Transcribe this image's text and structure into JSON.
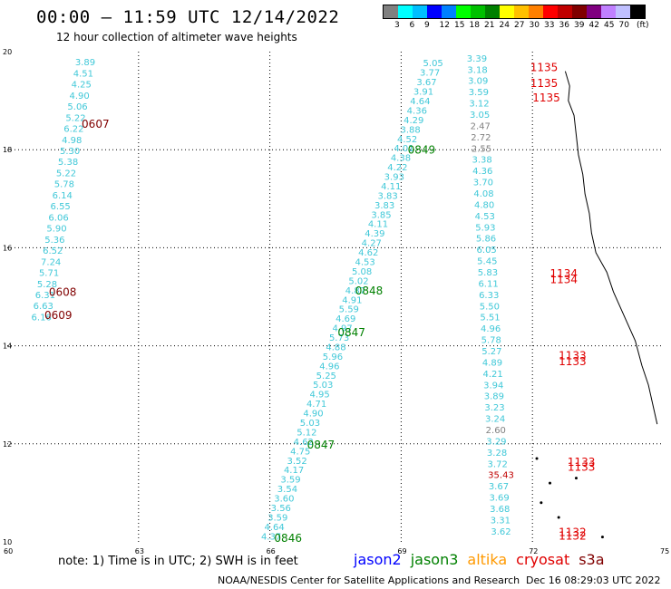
{
  "header": {
    "title": "00:00 – 11:59 UTC 12/14/2022",
    "subtitle": "12 hour collection of altimeter wave heights"
  },
  "legend": {
    "unit": "(ft)",
    "colors": [
      "#808080",
      "#00ffff",
      "#00bfff",
      "#0000ff",
      "#0080ff",
      "#00ff00",
      "#00c000",
      "#008000",
      "#ffff00",
      "#ffc000",
      "#ff8000",
      "#ff0000",
      "#c00000",
      "#800000",
      "#800080",
      "#c080ff",
      "#c0c0ff",
      "#000000"
    ],
    "ticks": [
      "3",
      "6",
      "9",
      "12",
      "15",
      "18",
      "21",
      "24",
      "27",
      "30",
      "33",
      "36",
      "39",
      "42",
      "45",
      "70"
    ]
  },
  "map": {
    "lon_range": [
      60,
      75
    ],
    "lat_range": [
      10,
      20
    ],
    "lon_ticks": [
      "60",
      "63",
      "66",
      "69",
      "72",
      "75"
    ],
    "lat_ticks": [
      "10",
      "12",
      "14",
      "16",
      "18",
      "20"
    ],
    "grid_lons": [
      63,
      66,
      69,
      72
    ],
    "grid_lats": [
      12,
      14,
      16,
      18
    ],
    "colors": {
      "swh": "#40c8d8",
      "swh_gray": "#808080",
      "swh_red": "#c00000",
      "jason3": "#008000",
      "cryosat": "#e00000",
      "sentinel3a": "#800000",
      "coast": "#000000"
    },
    "tracks": [
      {
        "name": "track-a",
        "lon_start": 61.55,
        "lat_start": 19.72,
        "lon_end": 60.55,
        "lat_end": 14.52,
        "values": [
          "3.89",
          "4.51",
          "4.25",
          "4.90",
          "5.06",
          "5.22",
          "6.22",
          "4.98",
          "5.30",
          "5.38",
          "5.22",
          "5.78",
          "6.14",
          "6.55",
          "6.06",
          "5.90",
          "5.36",
          "6.52",
          "7.24",
          "5.71",
          "5.28",
          "6.31",
          "6.63",
          "6.16"
        ]
      },
      {
        "name": "track-b",
        "lon_start": 69.5,
        "lat_start": 19.7,
        "lon_end": 65.8,
        "lat_end": 10.05,
        "values": [
          "5.05",
          "3.77",
          "3.67",
          "3.91",
          "4.64",
          "4.36",
          "4.29",
          "3.88",
          "4.52",
          "4.01",
          "4.38",
          "4.22",
          "3.93",
          "4.11",
          "3.83",
          "3.83",
          "3.85",
          "4.11",
          "4.39",
          "4.27",
          "4.62",
          "4.53",
          "5.08",
          "5.02",
          "4.87",
          "4.91",
          "5.59",
          "4.69",
          "4.97",
          "5.73",
          "4.88",
          "5.96",
          "4.96",
          "5.25",
          "5.03",
          "4.95",
          "4.71",
          "4.90",
          "5.03",
          "5.12",
          "4.62",
          "4.75",
          "3.52",
          "4.17",
          "3.59",
          "3.54",
          "3.60",
          "3.56",
          "3.59",
          "4.64",
          "4.37"
        ]
      },
      {
        "name": "track-c",
        "lon_start": 70.5,
        "lat_start": 19.8,
        "lon_end": 71.05,
        "lat_end": 10.15,
        "values": [
          "3.39",
          "3.18",
          "3.09",
          "3.59",
          "3.12",
          "3.05",
          "2.47",
          "2.72",
          "2.55",
          "3.38",
          "4.36",
          "3.70",
          "4.08",
          "4.80",
          "4.53",
          "5.93",
          "5.86",
          "6.05",
          "5.45",
          "5.83",
          "6.11",
          "6.33",
          "5.50",
          "5.51",
          "4.96",
          "5.78",
          "5.27",
          "4.89",
          "4.21",
          "3.94",
          "3.89",
          "3.23",
          "3.24",
          "2.60",
          "3.29",
          "3.28",
          "3.72",
          "35.43",
          "3.67",
          "3.69",
          "3.68",
          "3.31",
          "3.62"
        ]
      }
    ],
    "pass_labels": [
      {
        "text": "0607",
        "lon": 61.7,
        "lat": 18.45,
        "sat": "sentinel3a"
      },
      {
        "text": "0608",
        "lon": 60.95,
        "lat": 15.02,
        "sat": "sentinel3a"
      },
      {
        "text": "0609",
        "lon": 60.85,
        "lat": 14.55,
        "sat": "sentinel3a"
      },
      {
        "text": "0849",
        "lon": 69.15,
        "lat": 17.92,
        "sat": "jason3"
      },
      {
        "text": "0848",
        "lon": 67.95,
        "lat": 15.05,
        "sat": "jason3"
      },
      {
        "text": "0847",
        "lon": 67.55,
        "lat": 14.2,
        "sat": "jason3"
      },
      {
        "text": "0847",
        "lon": 66.85,
        "lat": 11.9,
        "sat": "jason3"
      },
      {
        "text": "0846",
        "lon": 66.1,
        "lat": 10.0,
        "sat": "jason3"
      },
      {
        "text": "1135",
        "lon": 71.95,
        "lat": 19.6,
        "sat": "cryosat"
      },
      {
        "text": "1135",
        "lon": 71.95,
        "lat": 19.28,
        "sat": "cryosat"
      },
      {
        "text": "1135",
        "lon": 72.0,
        "lat": 18.98,
        "sat": "cryosat"
      },
      {
        "text": "1134",
        "lon": 72.4,
        "lat": 15.4,
        "sat": "cryosat"
      },
      {
        "text": "1134",
        "lon": 72.4,
        "lat": 15.28,
        "sat": "cryosat"
      },
      {
        "text": "1133",
        "lon": 72.6,
        "lat": 13.72,
        "sat": "cryosat"
      },
      {
        "text": "1133",
        "lon": 72.6,
        "lat": 13.6,
        "sat": "cryosat"
      },
      {
        "text": "1133",
        "lon": 72.8,
        "lat": 11.55,
        "sat": "cryosat"
      },
      {
        "text": "1133",
        "lon": 72.8,
        "lat": 11.45,
        "sat": "cryosat"
      },
      {
        "text": "1132",
        "lon": 72.6,
        "lat": 10.12,
        "sat": "cryosat"
      },
      {
        "text": "1132",
        "lon": 72.6,
        "lat": 10.05,
        "sat": "cryosat"
      }
    ]
  },
  "footer": {
    "note": "note: 1) Time is in UTC; 2) SWH is in feet",
    "satellites": [
      {
        "name": "jason2",
        "color": "#0000ff"
      },
      {
        "name": "jason3",
        "color": "#008000"
      },
      {
        "name": "altika",
        "color": "#ff9900"
      },
      {
        "name": "cryosat",
        "color": "#e00000"
      },
      {
        "name": "s3a",
        "color": "#800000"
      }
    ],
    "credit": "NOAA/NESDIS Center for Satellite Applications and Research",
    "timestamp": "Dec 16 08:29:03 UTC 2022"
  }
}
